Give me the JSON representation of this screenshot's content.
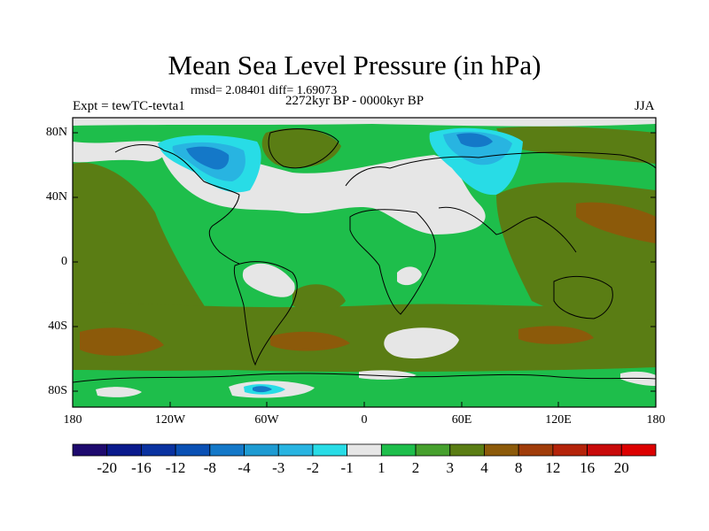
{
  "title": "Mean Sea Level Pressure (in hPa)",
  "stats": "rmsd= 2.08401 diff= 1.69073",
  "experiment": "Expt = tewTC-tevta1",
  "period": "2272kyr BP - 0000kyr BP",
  "season": "JJA",
  "lat_labels": [
    "80N",
    "40N",
    "0",
    "40S",
    "80S"
  ],
  "lon_labels": [
    "180",
    "120W",
    "60W",
    "0",
    "60E",
    "120E",
    "180"
  ],
  "colorbar": {
    "labels": [
      "-20",
      "-16",
      "-12",
      "-8",
      "-4",
      "-3",
      "-2",
      "-1",
      "1",
      "2",
      "3",
      "4",
      "8",
      "12",
      "16",
      "20"
    ],
    "colors": [
      "#1e0a6e",
      "#0a1a8c",
      "#0a32a0",
      "#0a50b4",
      "#1478c8",
      "#1e9bd2",
      "#28b4e1",
      "#28dce6",
      "#e6e6e6",
      "#1ebe4b",
      "#46a02d",
      "#5a7d14",
      "#8c5a0a",
      "#a03c0a",
      "#b4230a",
      "#c80a0a",
      "#dc0000"
    ]
  },
  "field_colors": {
    "land_green": "#1ebe4b",
    "olive": "#46a02d",
    "dark_olive": "#5a7d14",
    "brown": "#8c5a0a",
    "near_zero": "#e6e6e6",
    "cyan": "#28dce6",
    "light_blue": "#28b4e1",
    "blue": "#1478c8"
  }
}
